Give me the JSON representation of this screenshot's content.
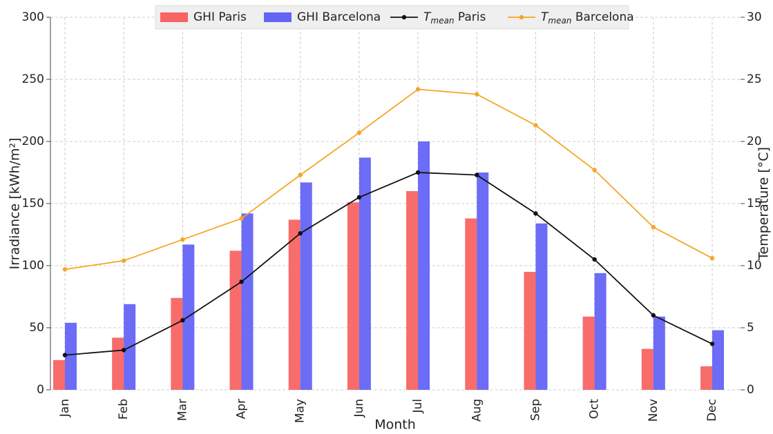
{
  "chart_data": {
    "type": "bar",
    "categories": [
      "Jan",
      "Feb",
      "Mar",
      "Apr",
      "May",
      "Jun",
      "Jul",
      "Aug",
      "Sep",
      "Oct",
      "Nov",
      "Dec"
    ],
    "series": [
      {
        "name": "GHI Paris",
        "type": "bar",
        "color": "#f86464",
        "values": [
          24,
          42,
          74,
          112,
          137,
          151,
          160,
          138,
          95,
          59,
          33,
          19
        ]
      },
      {
        "name": "GHI Barcelona",
        "type": "bar",
        "color": "#6464f5",
        "values": [
          54,
          69,
          117,
          142,
          167,
          187,
          200,
          175,
          134,
          94,
          59,
          48
        ]
      },
      {
        "name": "Tmean Paris",
        "type": "line",
        "axis": "y2",
        "color": "#111111",
        "values": [
          2.8,
          3.2,
          5.6,
          8.7,
          12.6,
          15.5,
          17.5,
          17.3,
          14.2,
          10.5,
          6.0,
          3.7
        ]
      },
      {
        "name": "Tmean Barcelona",
        "type": "line",
        "axis": "y2",
        "color": "#f5a623",
        "values": [
          9.7,
          10.4,
          12.1,
          13.8,
          17.3,
          20.7,
          24.2,
          23.8,
          21.3,
          17.7,
          13.1,
          10.6
        ]
      }
    ],
    "xlabel": "Month",
    "ylabel": "Irradiance [kWh/m²]",
    "y2label": "Temperature [°C]",
    "ylim": [
      0,
      300
    ],
    "yticks": [
      0,
      50,
      100,
      150,
      200,
      250,
      300
    ],
    "y2lim": [
      0,
      30
    ],
    "y2ticks": [
      0,
      5,
      10,
      15,
      20,
      25,
      30
    ],
    "grid": true,
    "legend": "top"
  }
}
